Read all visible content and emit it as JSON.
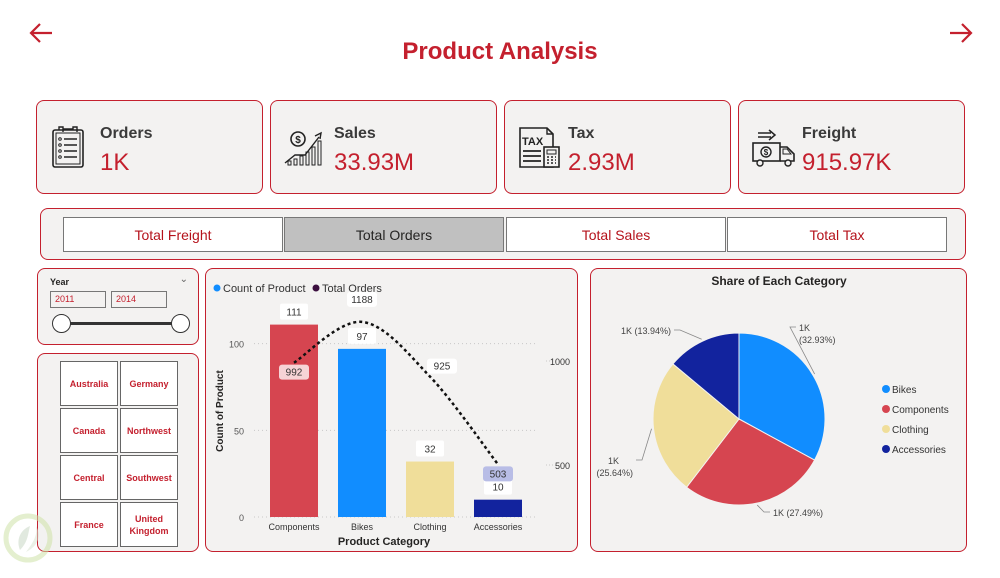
{
  "header": {
    "title": "Product Analysis",
    "back_icon": "arrow-left-icon",
    "forward_icon": "arrow-right-icon"
  },
  "colors": {
    "accent": "#c4202e",
    "card_bg": "#f3f2f1",
    "bikes": "#118dff",
    "components": "#d64550",
    "clothing": "#f0de9a",
    "accessories": "#12239e",
    "line": "#1a1a1a"
  },
  "kpis": [
    {
      "label": "Orders",
      "value": "1K",
      "icon": "clipboard-list-icon"
    },
    {
      "label": "Sales",
      "value": "33.93M",
      "icon": "sales-growth-icon"
    },
    {
      "label": "Tax",
      "value": "2.93M",
      "icon": "tax-document-icon"
    },
    {
      "label": "Freight",
      "value": "915.97K",
      "icon": "delivery-truck-icon"
    }
  ],
  "toggle_buttons": [
    {
      "label": "Total Freight",
      "active": false
    },
    {
      "label": "Total Orders",
      "active": true
    },
    {
      "label": "Total Sales",
      "active": false
    },
    {
      "label": "Total Tax",
      "active": false
    }
  ],
  "year_slicer": {
    "label": "Year",
    "start": "2011",
    "end": "2014",
    "chevron_icon": "chevron-down-icon"
  },
  "regions": [
    "Australia",
    "Germany",
    "Canada",
    "Northwest",
    "Central",
    "Southwest",
    "France",
    "United Kingdom"
  ],
  "chart_data": [
    {
      "type": "bar",
      "title": "",
      "legend": [
        {
          "name": "Count of Product",
          "color": "#118dff"
        },
        {
          "name": "Total Orders",
          "color": "#3b0f3f"
        }
      ],
      "legend_position": "top-left",
      "categories": [
        "Components",
        "Bikes",
        "Clothing",
        "Accessories"
      ],
      "series": [
        {
          "name": "Count of Product",
          "kind": "bar",
          "axis": "left",
          "values": [
            111,
            97,
            32,
            10
          ],
          "colors": [
            "#d64550",
            "#118dff",
            "#f0de9a",
            "#12239e"
          ]
        },
        {
          "name": "Total Orders",
          "kind": "line",
          "axis": "right",
          "style": "dashed",
          "values": [
            992,
            1188,
            925,
            503
          ]
        }
      ],
      "xlabel": "Product Category",
      "ylabel": "Count of Product",
      "ylim": [
        0,
        120
      ],
      "yticks": [
        0,
        50,
        100
      ],
      "y2lim": [
        250,
        1250
      ],
      "y2ticks": [
        500,
        1000
      ],
      "grid": true
    },
    {
      "type": "pie",
      "title": "Share of Each Category",
      "slices": [
        {
          "name": "Bikes",
          "percent": 32.93,
          "label": "1K (32.93%)",
          "color": "#118dff"
        },
        {
          "name": "Components",
          "percent": 27.49,
          "label": "1K (27.49%)",
          "color": "#d64550"
        },
        {
          "name": "Clothing",
          "percent": 25.64,
          "label": "1K (25.64%)",
          "color": "#f0de9a"
        },
        {
          "name": "Accessories",
          "percent": 13.94,
          "label": "1K (13.94%)",
          "color": "#12239e"
        }
      ],
      "legend": [
        "Bikes",
        "Components",
        "Clothing",
        "Accessories"
      ],
      "legend_position": "right"
    }
  ]
}
